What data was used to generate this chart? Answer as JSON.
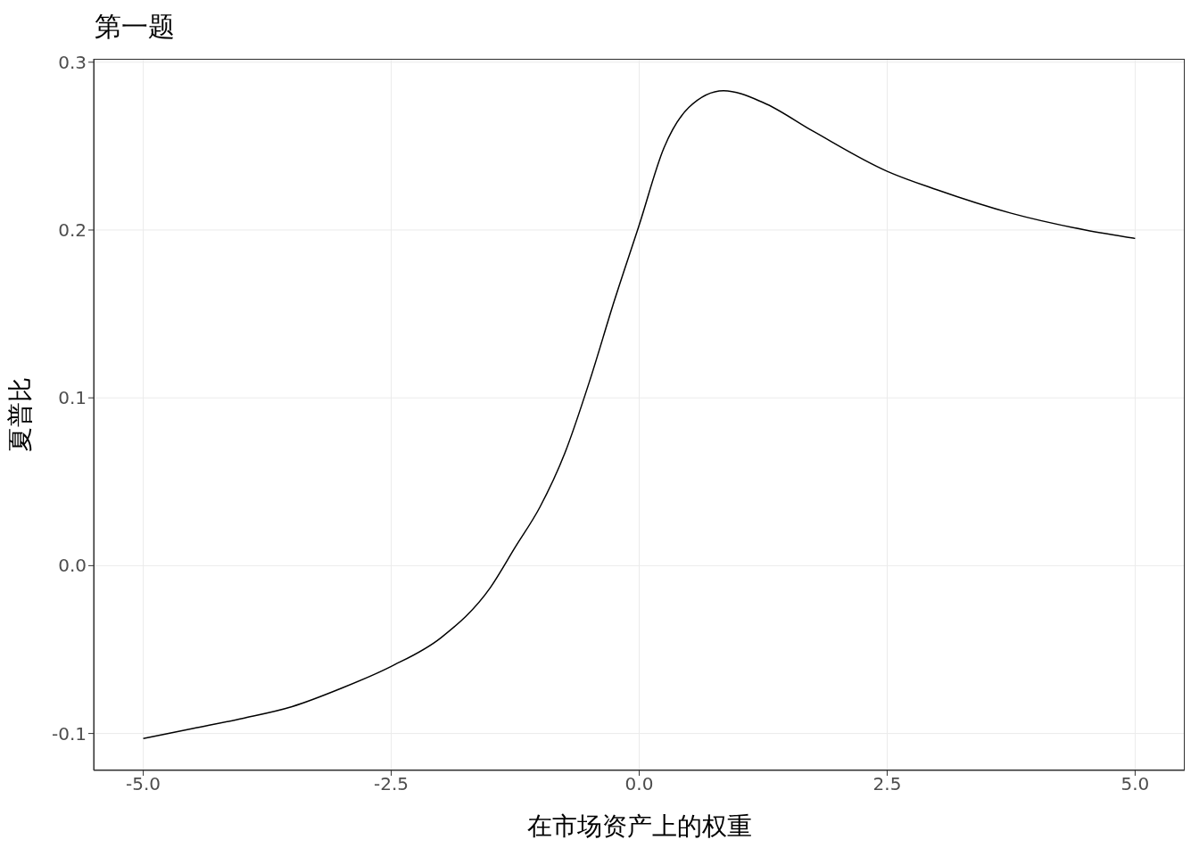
{
  "chart_data": {
    "type": "line",
    "title": "第一题",
    "xlabel": "在市场资产上的权重",
    "ylabel": "夏普比",
    "x": [
      -5,
      -4.5,
      -4,
      -3.5,
      -3,
      -2.5,
      -2,
      -1.5,
      -1.25,
      -1,
      -0.75,
      -0.5,
      -0.25,
      0,
      0.25,
      0.5,
      0.85,
      1.25,
      1.75,
      2.5,
      3,
      3.75,
      4.5,
      5
    ],
    "series": [
      {
        "color": "#000000",
        "values": [
          -0.103,
          -0.097,
          -0.091,
          -0.084,
          -0.073,
          -0.06,
          -0.043,
          -0.013,
          0.011,
          0.035,
          0.067,
          0.11,
          0.158,
          0.203,
          0.249,
          0.273,
          0.283,
          0.276,
          0.259,
          0.235,
          0.224,
          0.21,
          0.2,
          0.195
        ]
      }
    ],
    "xlim": [
      -5.5,
      5.5
    ],
    "xticks": [
      {
        "value": -5,
        "label": "-5.0"
      },
      {
        "value": -2.5,
        "label": "-2.5"
      },
      {
        "value": 0,
        "label": "0.0"
      },
      {
        "value": 2.5,
        "label": "2.5"
      },
      {
        "value": 5,
        "label": "5.0"
      }
    ],
    "ylim": [
      -0.122,
      0.302
    ],
    "yticks": [
      -0.1,
      {
        "value": 0,
        "label": "0.0"
      },
      0.1,
      0.2,
      0.3
    ],
    "grid": true,
    "legend": false,
    "marker": "none",
    "line_style": "solid"
  }
}
